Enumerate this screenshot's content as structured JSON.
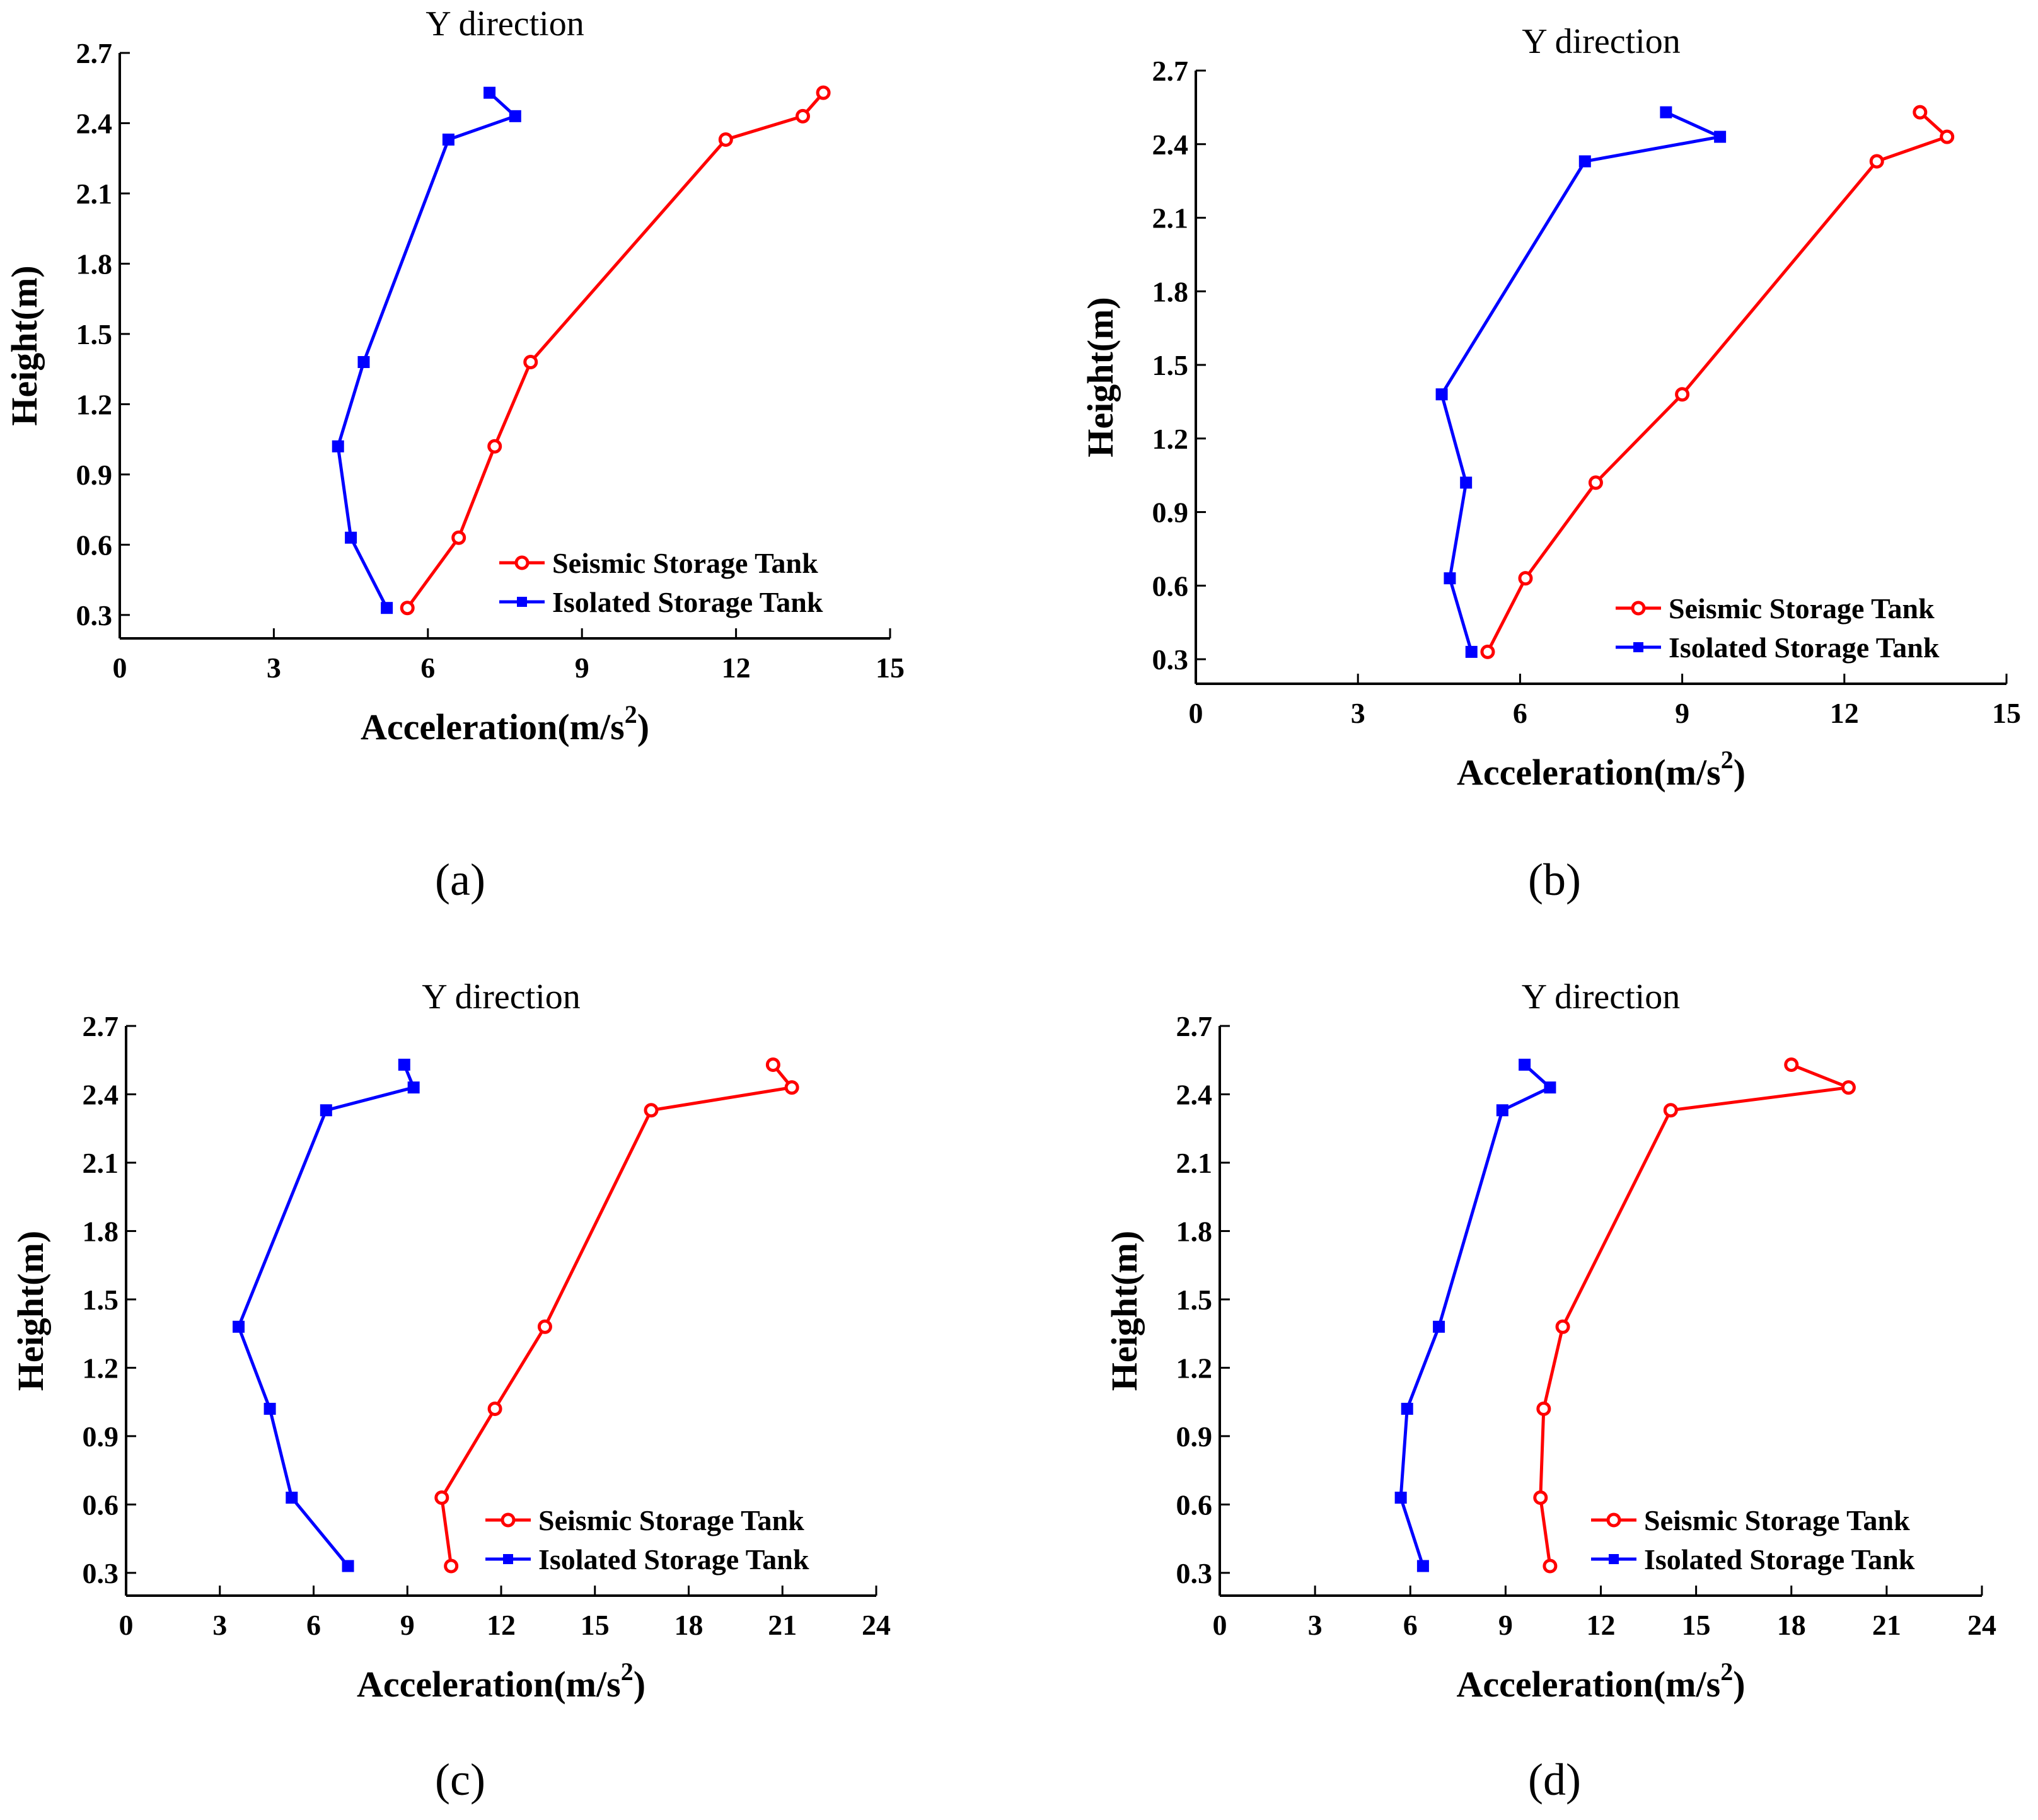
{
  "figure": {
    "colors": {
      "seismic": "#ff0000",
      "isolated": "#0000ff",
      "axis": "#000000"
    }
  },
  "chart_data": [
    {
      "panel": "(a)",
      "type": "line",
      "title": "Y direction",
      "xlabel": "Acceleration(m/s",
      "xlabel_sup": "2",
      "xlabel_close": ")",
      "ylabel": "Height(m)",
      "xlim": [
        0,
        15
      ],
      "ylim": [
        0.2,
        2.7
      ],
      "xticks": [
        0,
        3,
        6,
        9,
        12,
        15
      ],
      "xtick_labels": [
        "0",
        "3",
        "6",
        "9",
        "12",
        "15"
      ],
      "yticks": [
        0.3,
        0.6,
        0.9,
        1.2,
        1.5,
        1.8,
        2.1,
        2.4,
        2.7
      ],
      "ytick_labels": [
        "0.3",
        "0.6",
        "0.9",
        "1.2",
        "1.5",
        "1.8",
        "2.1",
        "2.4",
        "2.7"
      ],
      "legend_position": "bottom-right",
      "series": [
        {
          "name": "Seismic Storage Tank",
          "color": "#ff0000",
          "marker": "circle",
          "x": [
            5.6,
            6.6,
            7.3,
            8.0,
            11.8,
            13.3,
            13.7
          ],
          "y": [
            0.33,
            0.63,
            1.02,
            1.38,
            2.33,
            2.43,
            2.53
          ]
        },
        {
          "name": "Isolated Storage Tank",
          "color": "#0000ff",
          "marker": "square",
          "x": [
            5.2,
            4.5,
            4.25,
            4.75,
            6.4,
            7.7,
            7.2
          ],
          "y": [
            0.33,
            0.63,
            1.02,
            1.38,
            2.33,
            2.43,
            2.53
          ]
        }
      ]
    },
    {
      "panel": "(b)",
      "type": "line",
      "title": "Y direction",
      "xlabel": "Acceleration(m/s",
      "xlabel_sup": "2",
      "xlabel_close": ")",
      "ylabel": "Height(m)",
      "xlim": [
        0,
        15
      ],
      "ylim": [
        0.2,
        2.7
      ],
      "xticks": [
        0,
        3,
        6,
        9,
        12,
        15
      ],
      "xtick_labels": [
        "0",
        "3",
        "6",
        "9",
        "12",
        "15"
      ],
      "yticks": [
        0.3,
        0.6,
        0.9,
        1.2,
        1.5,
        1.8,
        2.1,
        2.4,
        2.7
      ],
      "ytick_labels": [
        "0.3",
        "0.6",
        "0.9",
        "1.2",
        "1.5",
        "1.8",
        "2.1",
        "2.4",
        "2.7"
      ],
      "legend_position": "bottom-right",
      "series": [
        {
          "name": "Seismic Storage Tank",
          "color": "#ff0000",
          "marker": "circle",
          "x": [
            5.4,
            6.1,
            7.4,
            9.0,
            12.6,
            13.9,
            13.4
          ],
          "y": [
            0.33,
            0.63,
            1.02,
            1.38,
            2.33,
            2.43,
            2.53
          ]
        },
        {
          "name": "Isolated Storage Tank",
          "color": "#0000ff",
          "marker": "square",
          "x": [
            5.1,
            4.7,
            5.0,
            4.55,
            7.2,
            9.7,
            8.7
          ],
          "y": [
            0.33,
            0.63,
            1.02,
            1.38,
            2.33,
            2.43,
            2.53
          ]
        }
      ]
    },
    {
      "panel": "(c)",
      "type": "line",
      "title": "Y direction",
      "xlabel": "Acceleration(m/s",
      "xlabel_sup": "2",
      "xlabel_close": ")",
      "ylabel": "Height(m)",
      "xlim": [
        0,
        24
      ],
      "ylim": [
        0.2,
        2.7
      ],
      "xticks": [
        0,
        3,
        6,
        9,
        12,
        15,
        18,
        21,
        24
      ],
      "xtick_labels": [
        "0",
        "3",
        "6",
        "9",
        "12",
        "15",
        "18",
        "21",
        "24"
      ],
      "yticks": [
        0.3,
        0.6,
        0.9,
        1.2,
        1.5,
        1.8,
        2.1,
        2.4,
        2.7
      ],
      "ytick_labels": [
        "0.3",
        "0.6",
        "0.9",
        "1.2",
        "1.5",
        "1.8",
        "2.1",
        "2.4",
        "2.7"
      ],
      "legend_position": "bottom-right",
      "series": [
        {
          "name": "Seismic Storage Tank",
          "color": "#ff0000",
          "marker": "circle",
          "x": [
            10.4,
            10.1,
            11.8,
            13.4,
            16.8,
            21.3,
            20.7
          ],
          "y": [
            0.33,
            0.63,
            1.02,
            1.38,
            2.33,
            2.43,
            2.53
          ]
        },
        {
          "name": "Isolated Storage Tank",
          "color": "#0000ff",
          "marker": "square",
          "x": [
            7.1,
            5.3,
            4.6,
            3.6,
            6.4,
            9.2,
            8.9
          ],
          "y": [
            0.33,
            0.63,
            1.02,
            1.38,
            2.33,
            2.43,
            2.53
          ]
        }
      ]
    },
    {
      "panel": "(d)",
      "type": "line",
      "title": "Y direction",
      "xlabel": "Acceleration(m/s",
      "xlabel_sup": "2",
      "xlabel_close": ")",
      "ylabel": "Height(m)",
      "xlim": [
        0,
        24
      ],
      "ylim": [
        0.2,
        2.7
      ],
      "xticks": [
        0,
        3,
        6,
        9,
        12,
        15,
        18,
        21,
        24
      ],
      "xtick_labels": [
        "0",
        "3",
        "6",
        "9",
        "12",
        "15",
        "18",
        "21",
        "24"
      ],
      "yticks": [
        0.3,
        0.6,
        0.9,
        1.2,
        1.5,
        1.8,
        2.1,
        2.4,
        2.7
      ],
      "ytick_labels": [
        "0.3",
        "0.6",
        "0.9",
        "1.2",
        "1.5",
        "1.8",
        "2.1",
        "2.4",
        "2.7"
      ],
      "legend_position": "bottom-right",
      "series": [
        {
          "name": "Seismic Storage Tank",
          "color": "#ff0000",
          "marker": "circle",
          "x": [
            10.4,
            10.1,
            10.2,
            10.8,
            14.2,
            19.8,
            18.0
          ],
          "y": [
            0.33,
            0.63,
            1.02,
            1.38,
            2.33,
            2.43,
            2.53
          ]
        },
        {
          "name": "Isolated Storage Tank",
          "color": "#0000ff",
          "marker": "square",
          "x": [
            6.4,
            5.7,
            5.9,
            6.9,
            8.9,
            10.4,
            9.6
          ],
          "y": [
            0.33,
            0.63,
            1.02,
            1.38,
            2.33,
            2.43,
            2.53
          ]
        }
      ]
    }
  ]
}
